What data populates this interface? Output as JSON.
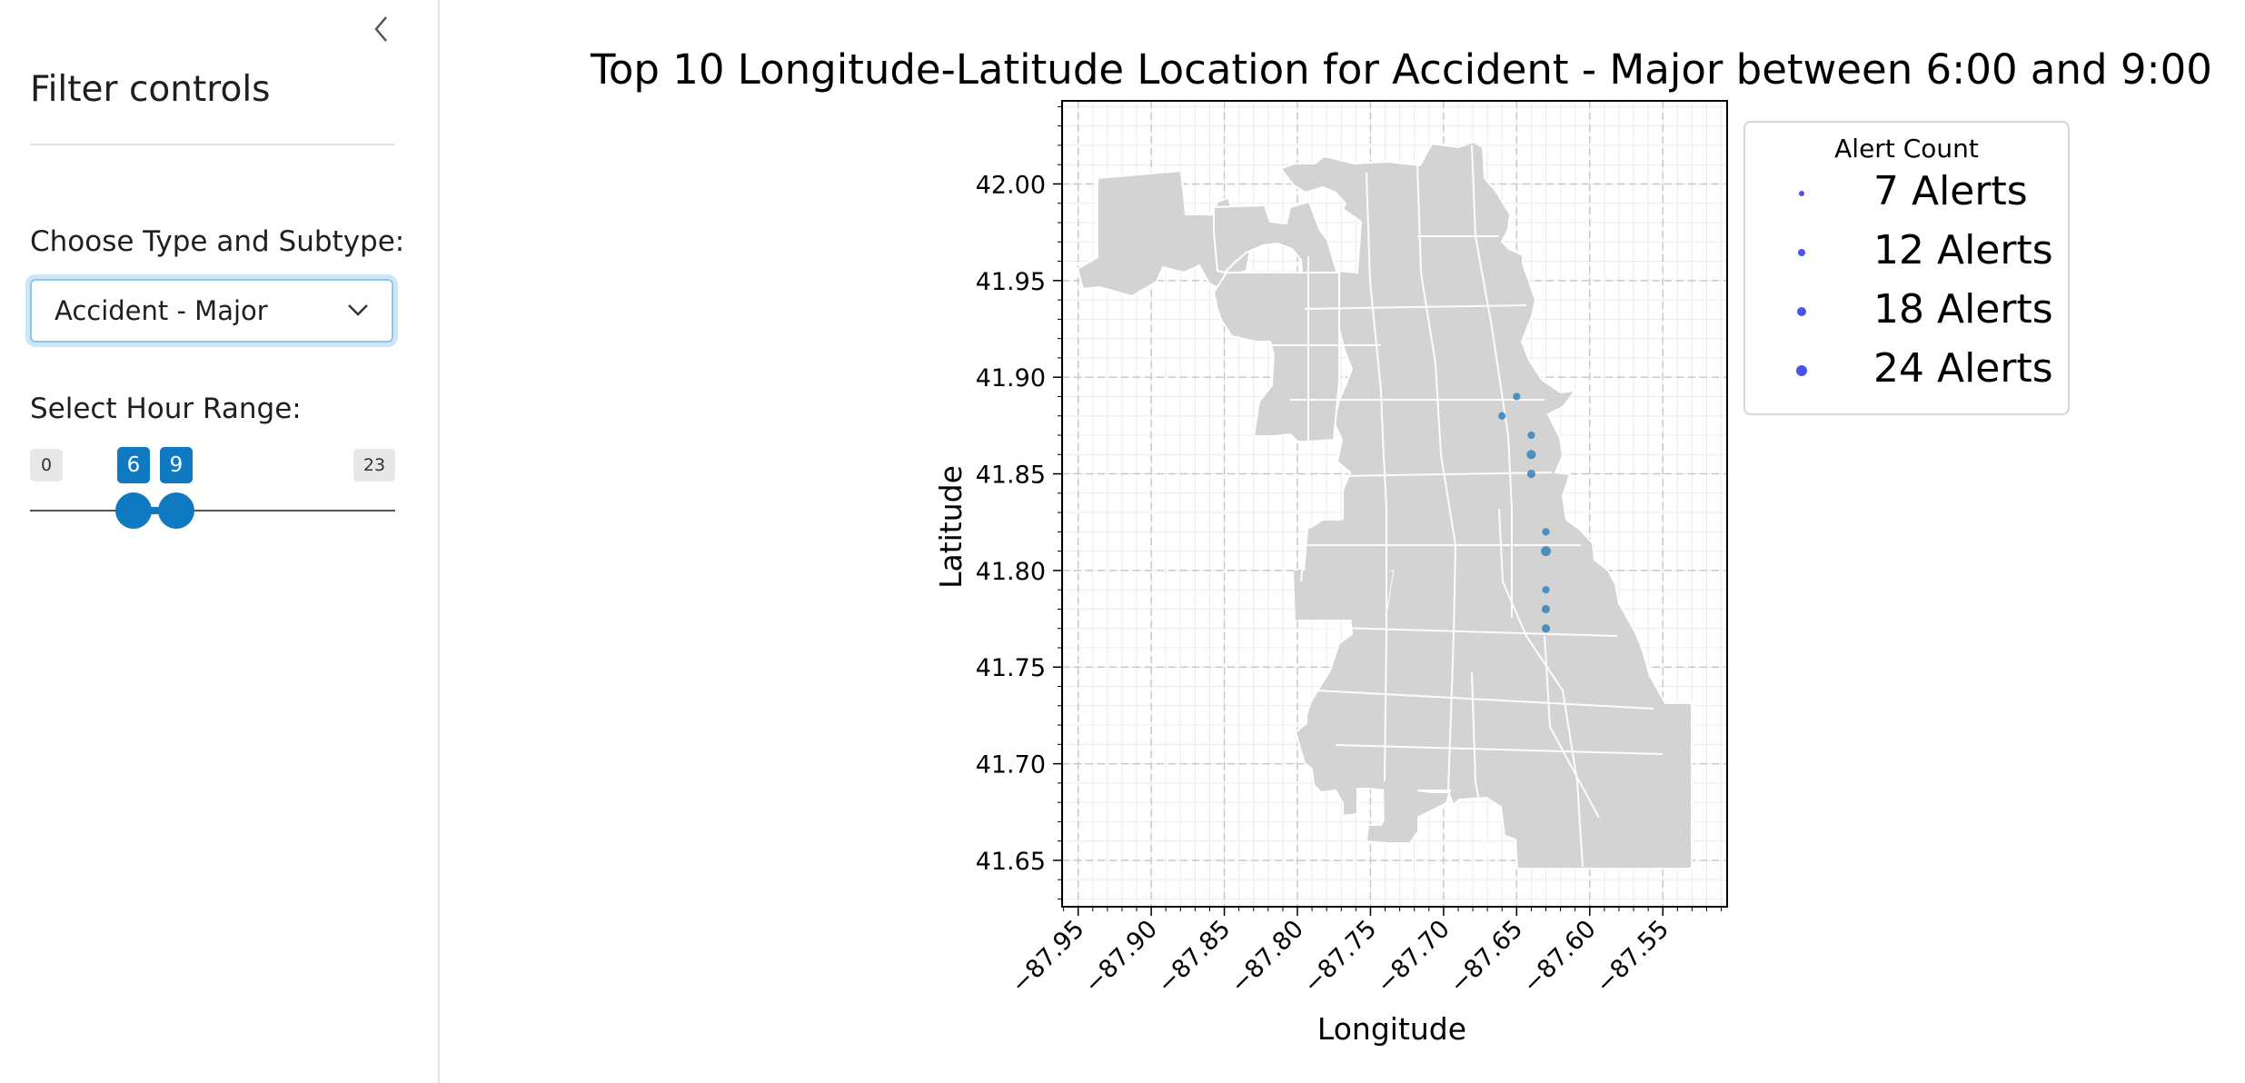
{
  "sidebar": {
    "title": "Filter controls",
    "type_label": "Choose Type and Subtype:",
    "type_selected": "Accident - Major",
    "hour_label": "Select Hour Range:",
    "hour_min": "0",
    "hour_max": "23",
    "hour_from": "6",
    "hour_to": "9"
  },
  "colors": {
    "accent": "#0f79c1",
    "map_fill": "#d3d3d3",
    "point": "#1f77b4",
    "legend_point": "#2d35e6"
  },
  "chart_data": {
    "type": "scatter",
    "title": "Top 10 Longitude-Latitude Location for Accident - Major between 6:00 and 9:00",
    "xlabel": "Longitude",
    "ylabel": "Latitude",
    "xlim": [
      -87.961,
      -87.506
    ],
    "ylim": [
      41.626,
      42.043
    ],
    "xticks": [
      "−87.95",
      "−87.90",
      "−87.85",
      "−87.80",
      "−87.75",
      "−87.70",
      "−87.65",
      "−87.60",
      "−87.55"
    ],
    "yticks": [
      "41.65",
      "41.70",
      "41.75",
      "41.80",
      "41.85",
      "41.90",
      "41.95",
      "42.00"
    ],
    "grid": true,
    "legend_title": "Alert Count",
    "legend_position": "outside-right",
    "legend_entries": [
      "7 Alerts",
      "12 Alerts",
      "18 Alerts",
      "24 Alerts"
    ],
    "background": "map of Chicago community areas",
    "points": [
      {
        "x": -87.65,
        "y": 41.89,
        "alerts": 7
      },
      {
        "x": -87.66,
        "y": 41.88,
        "alerts": 7
      },
      {
        "x": -87.64,
        "y": 41.87,
        "alerts": 7
      },
      {
        "x": -87.64,
        "y": 41.86,
        "alerts": 18
      },
      {
        "x": -87.64,
        "y": 41.85,
        "alerts": 12
      },
      {
        "x": -87.63,
        "y": 41.82,
        "alerts": 7
      },
      {
        "x": -87.63,
        "y": 41.81,
        "alerts": 24
      },
      {
        "x": -87.63,
        "y": 41.79,
        "alerts": 7
      },
      {
        "x": -87.63,
        "y": 41.78,
        "alerts": 12
      },
      {
        "x": -87.63,
        "y": 41.77,
        "alerts": 12
      }
    ]
  }
}
